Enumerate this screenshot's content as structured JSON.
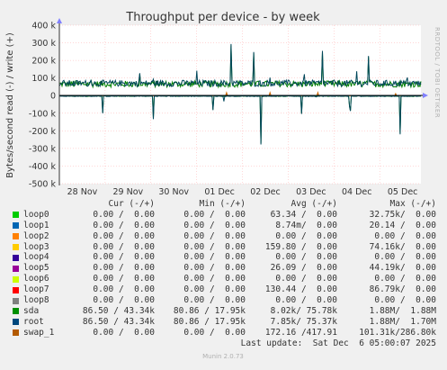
{
  "chart_data": {
    "type": "line",
    "title": "Throughput per device - by week",
    "ylabel": "Bytes/second read (-) / write (+)",
    "ylim": [
      -500000,
      400000
    ],
    "yticks": [
      {
        "value": 400000,
        "label": "400 k"
      },
      {
        "value": 300000,
        "label": "300 k"
      },
      {
        "value": 200000,
        "label": "200 k"
      },
      {
        "value": 100000,
        "label": "100 k"
      },
      {
        "value": 0,
        "label": "0"
      },
      {
        "value": -100000,
        "label": "-100 k"
      },
      {
        "value": -200000,
        "label": "-200 k"
      },
      {
        "value": -300000,
        "label": "-300 k"
      },
      {
        "value": -400000,
        "label": "-400 k"
      },
      {
        "value": -500000,
        "label": "-500 k"
      }
    ],
    "xlim": [
      0,
      7.9
    ],
    "xticks": [
      {
        "value": 0.5,
        "label": "28 Nov"
      },
      {
        "value": 1.5,
        "label": "29 Nov"
      },
      {
        "value": 2.5,
        "label": "30 Nov"
      },
      {
        "value": 3.5,
        "label": "01 Dec"
      },
      {
        "value": 4.5,
        "label": "02 Dec"
      },
      {
        "value": 5.5,
        "label": "03 Dec"
      },
      {
        "value": 6.5,
        "label": "04 Dec"
      },
      {
        "value": 7.5,
        "label": "05 Dec"
      }
    ],
    "grid": true,
    "side_label": "RRDTOOL / TOBI OETIKER",
    "series": [
      {
        "name": "root",
        "color": "#00465a",
        "baseline_write": 70000,
        "baseline_read": -3000,
        "write_spikes": [
          [
            0.7,
            330000
          ],
          [
            1.75,
            360000
          ],
          [
            2.05,
            140000
          ],
          [
            2.6,
            160000
          ],
          [
            3.0,
            170000
          ],
          [
            3.75,
            370000
          ],
          [
            4.25,
            360000
          ],
          [
            4.6,
            120000
          ],
          [
            4.75,
            310000
          ],
          [
            5.0,
            120000
          ],
          [
            5.35,
            150000
          ],
          [
            5.75,
            330000
          ],
          [
            6.5,
            170000
          ],
          [
            6.75,
            360000
          ],
          [
            7.6,
            150000
          ]
        ],
        "read_spikes": [
          [
            0.95,
            -120000
          ],
          [
            2.05,
            -200000
          ],
          [
            3.35,
            -220000
          ],
          [
            3.6,
            -60000
          ],
          [
            4.4,
            -430000
          ],
          [
            5.3,
            -250000
          ],
          [
            5.6,
            -30000
          ],
          [
            6.35,
            -420000
          ],
          [
            7.45,
            -340000
          ]
        ]
      },
      {
        "name": "sda",
        "color": "#008000",
        "baseline_write": 66000,
        "baseline_read": -2500,
        "write_spikes": [
          [
            0.7,
            320000
          ],
          [
            1.75,
            350000
          ],
          [
            3.75,
            360000
          ],
          [
            4.25,
            350000
          ],
          [
            5.75,
            320000
          ],
          [
            6.75,
            350000
          ]
        ],
        "read_spikes": [
          [
            0.95,
            -115000
          ],
          [
            2.05,
            -190000
          ],
          [
            3.35,
            -210000
          ],
          [
            4.4,
            -420000
          ],
          [
            5.3,
            -240000
          ],
          [
            6.35,
            -410000
          ],
          [
            7.45,
            -330000
          ]
        ]
      },
      {
        "name": "swap_1",
        "color": "#c86400",
        "baseline_write": 0,
        "baseline_read": 0,
        "write_spikes": [
          [
            3.65,
            25000
          ],
          [
            4.6,
            20000
          ],
          [
            5.65,
            20000
          ],
          [
            7.35,
            15000
          ]
        ],
        "read_spikes": []
      }
    ]
  },
  "legend": {
    "header": {
      "cur": "Cur (-/+)",
      "min": "Min (-/+)",
      "avg": "Avg (-/+)",
      "max": "Max (-/+)"
    },
    "rows": [
      {
        "name": "loop0",
        "color": "#00cc00",
        "cur": "0.00 /  0.00",
        "min": "0.00 /  0.00",
        "avg": "63.34 /  0.00",
        "max": "32.75k/  0.00"
      },
      {
        "name": "loop1",
        "color": "#0066b3",
        "cur": "0.00 /  0.00",
        "min": "0.00 /  0.00",
        "avg": "8.74m/  0.00",
        "max": "20.14 /  0.00"
      },
      {
        "name": "loop2",
        "color": "#ff8000",
        "cur": "0.00 /  0.00",
        "min": "0.00 /  0.00",
        "avg": "0.00 /  0.00",
        "max": "0.00 /  0.00"
      },
      {
        "name": "loop3",
        "color": "#ffcc00",
        "cur": "0.00 /  0.00",
        "min": "0.00 /  0.00",
        "avg": "159.80 /  0.00",
        "max": "74.16k/  0.00"
      },
      {
        "name": "loop4",
        "color": "#330099",
        "cur": "0.00 /  0.00",
        "min": "0.00 /  0.00",
        "avg": "0.00 /  0.00",
        "max": "0.00 /  0.00"
      },
      {
        "name": "loop5",
        "color": "#990099",
        "cur": "0.00 /  0.00",
        "min": "0.00 /  0.00",
        "avg": "26.09 /  0.00",
        "max": "44.19k/  0.00"
      },
      {
        "name": "loop6",
        "color": "#ccff00",
        "cur": "0.00 /  0.00",
        "min": "0.00 /  0.00",
        "avg": "0.00 /  0.00",
        "max": "0.00 /  0.00"
      },
      {
        "name": "loop7",
        "color": "#ff0000",
        "cur": "0.00 /  0.00",
        "min": "0.00 /  0.00",
        "avg": "130.44 /  0.00",
        "max": "86.79k/  0.00"
      },
      {
        "name": "loop8",
        "color": "#808080",
        "cur": "0.00 /  0.00",
        "min": "0.00 /  0.00",
        "avg": "0.00 /  0.00",
        "max": "0.00 /  0.00"
      },
      {
        "name": "sda",
        "color": "#008f00",
        "cur": "86.50 / 43.34k",
        "min": "80.86 / 17.95k",
        "avg": "8.02k/ 75.78k",
        "max": "1.88M/  1.88M"
      },
      {
        "name": "root",
        "color": "#00487d",
        "cur": "86.50 / 43.34k",
        "min": "80.86 / 17.95k",
        "avg": "7.85k/ 75.37k",
        "max": "1.88M/  1.70M"
      },
      {
        "name": "swap_1",
        "color": "#b35a00",
        "cur": "0.00 /  0.00",
        "min": "0.00 /  0.00",
        "avg": "172.16 /417.91",
        "max": "101.31k/286.80k"
      }
    ],
    "last_update": "Last update:  Sat Dec  6 05:00:07 2025"
  },
  "footer": "Munin 2.0.73"
}
